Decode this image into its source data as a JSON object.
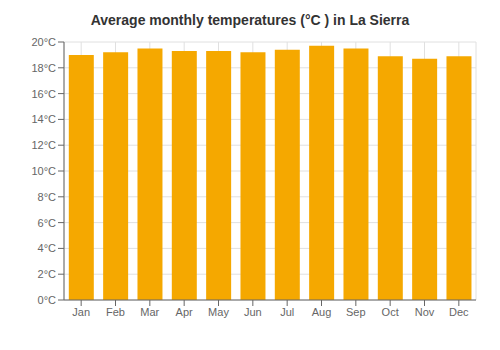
{
  "chart_data": {
    "type": "bar",
    "title": "Average monthly temperatures (°C ) in La Sierra",
    "categories": [
      "Jan",
      "Feb",
      "Mar",
      "Apr",
      "May",
      "Jun",
      "Jul",
      "Aug",
      "Sep",
      "Oct",
      "Nov",
      "Dec"
    ],
    "values": [
      19.0,
      19.2,
      19.5,
      19.3,
      19.3,
      19.2,
      19.4,
      19.7,
      19.5,
      18.9,
      18.7,
      18.9
    ],
    "color": "#F5A800",
    "ylim": [
      0,
      20
    ],
    "yticks": [
      {
        "value": 0,
        "label": "0°C"
      },
      {
        "value": 2,
        "label": "2°C"
      },
      {
        "value": 4,
        "label": "4°C"
      },
      {
        "value": 6,
        "label": "6°C"
      },
      {
        "value": 8,
        "label": "8°C"
      },
      {
        "value": 10,
        "label": "10°C"
      },
      {
        "value": 12,
        "label": "12°C"
      },
      {
        "value": 14,
        "label": "14°C"
      },
      {
        "value": 16,
        "label": "16°C"
      },
      {
        "value": 18,
        "label": "18°C"
      },
      {
        "value": 20,
        "label": "20°C"
      }
    ],
    "grid": true
  }
}
